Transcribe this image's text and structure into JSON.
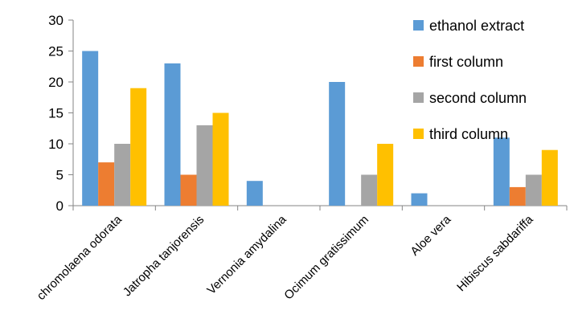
{
  "chart_data": {
    "type": "bar",
    "title": "",
    "xlabel": "",
    "ylabel": "",
    "ylim": [
      0,
      30
    ],
    "yticks": [
      0,
      5,
      10,
      15,
      20,
      25,
      30
    ],
    "grid": false,
    "legend_position": "top-right",
    "categories": [
      "chromolaena odorata",
      "Jatropha tanjorensis",
      "Vernonia  amydalina",
      "Ocimum gratissimum",
      "Aloe vera",
      "Hibiscus sabdariffa"
    ],
    "series": [
      {
        "name": "ethanol extract",
        "color": "#5B9BD5",
        "values": [
          25,
          23,
          4,
          20,
          2,
          11
        ]
      },
      {
        "name": " first column",
        "color": "#ED7D31",
        "values": [
          7,
          5,
          0,
          0,
          0,
          3
        ]
      },
      {
        "name": " second column",
        "color": "#A5A5A5",
        "values": [
          10,
          13,
          0,
          5,
          0,
          5
        ]
      },
      {
        "name": "third column",
        "color": "#FFC000",
        "values": [
          19,
          15,
          0,
          10,
          0,
          9
        ]
      }
    ]
  }
}
